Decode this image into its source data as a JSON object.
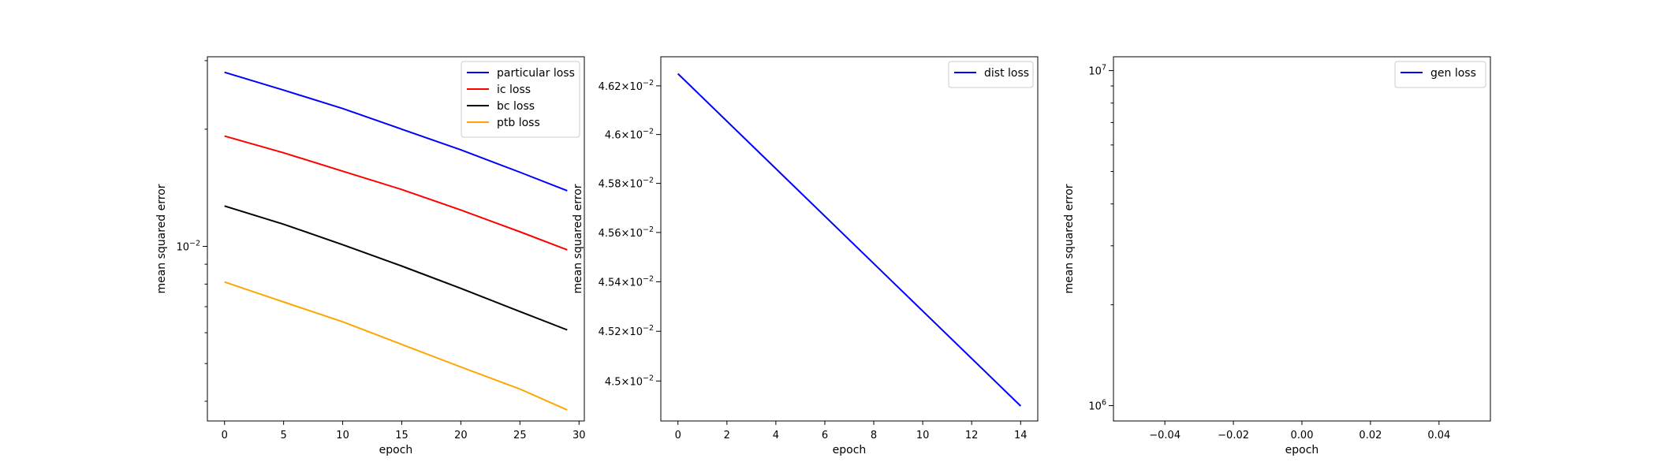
{
  "chart_data": [
    {
      "type": "line",
      "title": "",
      "xlabel": "epoch",
      "ylabel": "mean squared error",
      "xlim": [
        -1.45,
        30.45
      ],
      "ylim": [
        0.00356,
        0.0307
      ],
      "yscale": "log",
      "grid": false,
      "legend_position": "top-right",
      "xticks": [
        {
          "value": 0,
          "label": "0"
        },
        {
          "value": 5,
          "label": "5"
        },
        {
          "value": 10,
          "label": "10"
        },
        {
          "value": 15,
          "label": "15"
        },
        {
          "value": 20,
          "label": "20"
        },
        {
          "value": 25,
          "label": "25"
        },
        {
          "value": 30,
          "label": "30"
        }
      ],
      "yticks": [
        {
          "value": 0.01,
          "base": "10",
          "exp": "−2"
        }
      ],
      "series": [
        {
          "name": "particular loss",
          "color": "#0000ff",
          "x": [
            0,
            5,
            10,
            15,
            20,
            25,
            29
          ],
          "y": [
            0.028,
            0.0252,
            0.0226,
            0.02,
            0.0177,
            0.0155,
            0.0139
          ]
        },
        {
          "name": "ic loss",
          "color": "#ff0000",
          "x": [
            0,
            5,
            10,
            15,
            20,
            25,
            29
          ],
          "y": [
            0.0192,
            0.0174,
            0.0156,
            0.014,
            0.0124,
            0.0109,
            0.0098
          ]
        },
        {
          "name": "bc loss",
          "color": "#000000",
          "x": [
            0,
            5,
            10,
            15,
            20,
            25,
            29
          ],
          "y": [
            0.0127,
            0.0114,
            0.0101,
            0.0089,
            0.0078,
            0.0068,
            0.0061
          ]
        },
        {
          "name": "ptb loss",
          "color": "#ffa500",
          "x": [
            0,
            5,
            10,
            15,
            20,
            25,
            29
          ],
          "y": [
            0.0081,
            0.0072,
            0.0064,
            0.0056,
            0.0049,
            0.0043,
            0.0038
          ]
        }
      ]
    },
    {
      "type": "line",
      "title": "",
      "xlabel": "epoch",
      "ylabel": "mean squared error",
      "xlim": [
        -0.7,
        14.7
      ],
      "ylim": [
        0.04484,
        0.04632
      ],
      "yscale": "log",
      "grid": false,
      "legend_position": "top-right",
      "xticks": [
        {
          "value": 0,
          "label": "0"
        },
        {
          "value": 2,
          "label": "2"
        },
        {
          "value": 4,
          "label": "4"
        },
        {
          "value": 6,
          "label": "6"
        },
        {
          "value": 8,
          "label": "8"
        },
        {
          "value": 10,
          "label": "10"
        },
        {
          "value": 12,
          "label": "12"
        },
        {
          "value": 14,
          "label": "14"
        }
      ],
      "yticks": [
        {
          "value": 0.045,
          "mant": "4.5",
          "base": "10",
          "exp": "−2"
        },
        {
          "value": 0.0452,
          "mant": "4.52",
          "base": "10",
          "exp": "−2"
        },
        {
          "value": 0.0454,
          "mant": "4.54",
          "base": "10",
          "exp": "−2"
        },
        {
          "value": 0.0456,
          "mant": "4.56",
          "base": "10",
          "exp": "−2"
        },
        {
          "value": 0.0458,
          "mant": "4.58",
          "base": "10",
          "exp": "−2"
        },
        {
          "value": 0.046,
          "mant": "4.6",
          "base": "10",
          "exp": "−2"
        },
        {
          "value": 0.0462,
          "mant": "4.62",
          "base": "10",
          "exp": "−2"
        }
      ],
      "series": [
        {
          "name": "dist loss",
          "color": "#0000ff",
          "x": [
            0,
            14
          ],
          "y": [
            0.04625,
            0.0449
          ]
        }
      ]
    },
    {
      "type": "line",
      "title": "",
      "xlabel": "epoch",
      "ylabel": "mean squared error",
      "xlim": [
        -0.055,
        0.055
      ],
      "ylim": [
        900000,
        11000000
      ],
      "yscale": "log",
      "grid": false,
      "legend_position": "top-right",
      "xticks": [
        {
          "value": -0.04,
          "label": "−0.04"
        },
        {
          "value": -0.02,
          "label": "−0.02"
        },
        {
          "value": 0.0,
          "label": "0.00"
        },
        {
          "value": 0.02,
          "label": "0.02"
        },
        {
          "value": 0.04,
          "label": "0.04"
        }
      ],
      "yticks": [
        {
          "value": 1000000,
          "base": "10",
          "exp": "6"
        },
        {
          "value": 10000000,
          "base": "10",
          "exp": "7"
        }
      ],
      "series": [
        {
          "name": "gen loss",
          "color": "#0000ff",
          "x": [],
          "y": []
        }
      ]
    }
  ]
}
